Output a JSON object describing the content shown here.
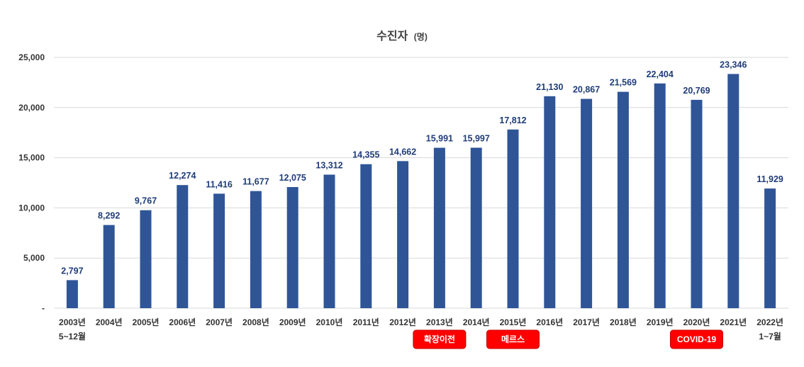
{
  "chart_data": {
    "type": "bar",
    "title": "수진자",
    "title_unit": "(명)",
    "categories": [
      "2003년",
      "2004년",
      "2005년",
      "2006년",
      "2007년",
      "2008년",
      "2009년",
      "2010년",
      "2011년",
      "2012년",
      "2013년",
      "2014년",
      "2015년",
      "2016년",
      "2017년",
      "2018년",
      "2019년",
      "2020년",
      "2021년",
      "2022년"
    ],
    "category_sublabels": {
      "0": "5~12월",
      "19": "1~7월"
    },
    "values": [
      2797,
      8292,
      9767,
      12274,
      11416,
      11677,
      12075,
      13312,
      14355,
      14662,
      15991,
      15997,
      17812,
      21130,
      20867,
      21569,
      22404,
      20769,
      23346,
      11929
    ],
    "data_labels": [
      "2,797",
      "8,292",
      "9,767",
      "12,274",
      "11,416",
      "11,677",
      "12,075",
      "13,312",
      "14,355",
      "14,662",
      "15,991",
      "15,997",
      "17,812",
      "21,130",
      "20,867",
      "21,569",
      "22,404",
      "20,769",
      "23,346",
      "11,929"
    ],
    "ylim": [
      0,
      25000
    ],
    "yticks": [
      0,
      5000,
      10000,
      15000,
      20000,
      25000
    ],
    "ytick_labels": [
      "-",
      "5,000",
      "10,000",
      "15,000",
      "20,000",
      "25,000"
    ],
    "grid": true,
    "bar_color": "#2f5597",
    "annotations": [
      {
        "category_index": 10,
        "text": "확장이전",
        "color": "#ff0000"
      },
      {
        "category_index": 12,
        "text": "메르스",
        "color": "#ff0000"
      },
      {
        "category_index": 17,
        "text": "COVID-19",
        "color": "#ff0000"
      }
    ]
  }
}
